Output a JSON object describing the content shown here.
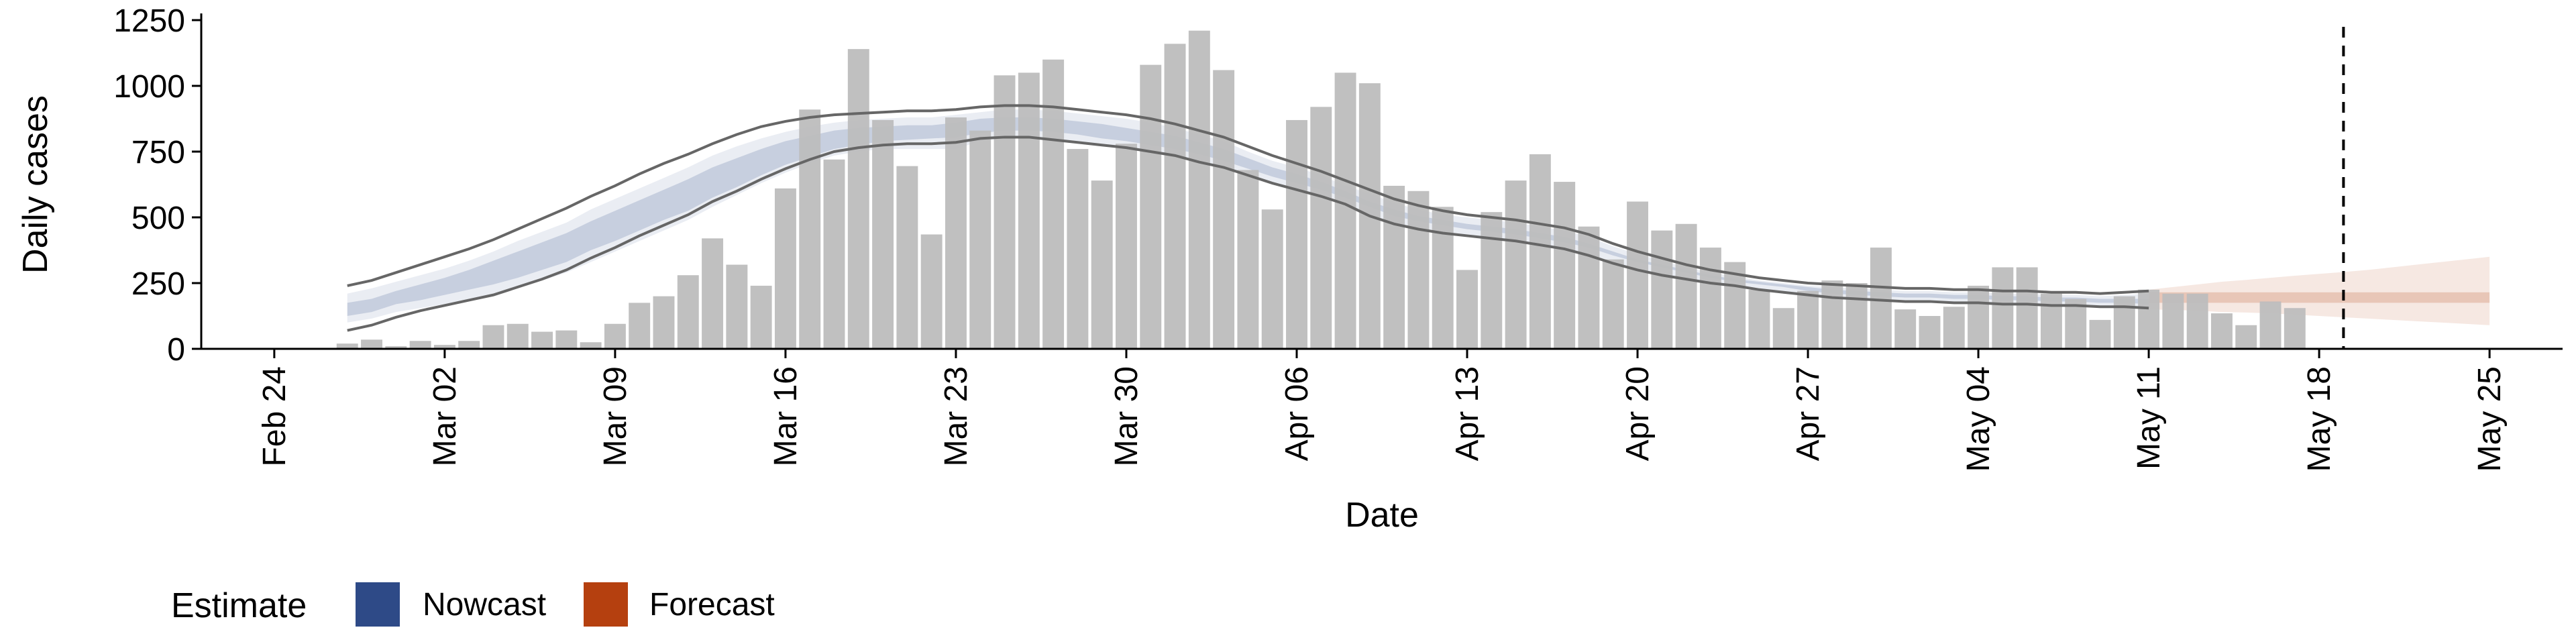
{
  "chart_data": {
    "type": "bar",
    "xlabel": "Date",
    "ylabel": "Daily cases",
    "ylim": [
      0,
      1250
    ],
    "yticks": [
      0,
      250,
      500,
      750,
      1000,
      1250
    ],
    "xlim": [
      "2020-02-21",
      "2020-05-28"
    ],
    "xticks": [
      {
        "date": "2020-02-24",
        "label": "Feb 24"
      },
      {
        "date": "2020-03-02",
        "label": "Mar 02"
      },
      {
        "date": "2020-03-09",
        "label": "Mar 09"
      },
      {
        "date": "2020-03-16",
        "label": "Mar 16"
      },
      {
        "date": "2020-03-23",
        "label": "Mar 23"
      },
      {
        "date": "2020-03-30",
        "label": "Mar 30"
      },
      {
        "date": "2020-04-06",
        "label": "Apr 06"
      },
      {
        "date": "2020-04-13",
        "label": "Apr 13"
      },
      {
        "date": "2020-04-20",
        "label": "Apr 20"
      },
      {
        "date": "2020-04-27",
        "label": "Apr 27"
      },
      {
        "date": "2020-05-04",
        "label": "May 04"
      },
      {
        "date": "2020-05-11",
        "label": "May 11"
      },
      {
        "date": "2020-05-18",
        "label": "May 18"
      },
      {
        "date": "2020-05-25",
        "label": "May 25"
      }
    ],
    "grid": false,
    "bars": {
      "start_date": "2020-02-27",
      "values": [
        20,
        35,
        10,
        30,
        15,
        30,
        90,
        95,
        65,
        70,
        25,
        95,
        175,
        200,
        280,
        420,
        320,
        240,
        610,
        910,
        720,
        1140,
        870,
        695,
        435,
        880,
        830,
        1040,
        1050,
        1100,
        760,
        640,
        780,
        1080,
        1160,
        1210,
        1060,
        680,
        530,
        870,
        920,
        1050,
        1010,
        620,
        600,
        540,
        300,
        520,
        640,
        740,
        635,
        465,
        340,
        560,
        450,
        475,
        385,
        330,
        225,
        155,
        220,
        260,
        250,
        385,
        150,
        125,
        160,
        240,
        310,
        310,
        210,
        190,
        110,
        200,
        225,
        210,
        210,
        135,
        90,
        180,
        155
      ]
    },
    "nowcast": {
      "start_date": "2020-02-27",
      "lower90": [
        100,
        115,
        140,
        155,
        170,
        185,
        210,
        235,
        260,
        290,
        330,
        370,
        410,
        450,
        490,
        540,
        585,
        630,
        670,
        705,
        735,
        750,
        760,
        760,
        760,
        760,
        790,
        800,
        800,
        790,
        780,
        770,
        760,
        745,
        735,
        710,
        690,
        660,
        630,
        605,
        580,
        550,
        510,
        480,
        460,
        445,
        430,
        420,
        410,
        395,
        380,
        360,
        330,
        300,
        285,
        270,
        250,
        240,
        225,
        210,
        200,
        190,
        190,
        185,
        180,
        180,
        175,
        175,
        170,
        170,
        165,
        165,
        160,
        160,
        155
      ],
      "upper90": [
        210,
        230,
        255,
        280,
        305,
        335,
        370,
        410,
        445,
        480,
        530,
        570,
        610,
        650,
        690,
        735,
        770,
        800,
        825,
        845,
        860,
        870,
        875,
        880,
        880,
        890,
        900,
        910,
        910,
        905,
        895,
        885,
        875,
        860,
        840,
        815,
        790,
        750,
        715,
        690,
        660,
        620,
        590,
        555,
        530,
        510,
        500,
        490,
        480,
        465,
        450,
        425,
        390,
        360,
        335,
        310,
        290,
        275,
        260,
        250,
        240,
        235,
        230,
        225,
        220,
        220,
        215,
        215,
        210,
        210,
        205,
        205,
        200,
        205,
        210
      ],
      "lower50": [
        125,
        140,
        170,
        185,
        205,
        225,
        245,
        270,
        300,
        330,
        375,
        410,
        450,
        490,
        525,
        575,
        615,
        660,
        700,
        730,
        760,
        775,
        790,
        795,
        800,
        805,
        820,
        830,
        830,
        825,
        815,
        800,
        790,
        775,
        760,
        740,
        715,
        685,
        655,
        630,
        605,
        575,
        540,
        505,
        485,
        470,
        455,
        445,
        435,
        420,
        405,
        385,
        355,
        330,
        310,
        290,
        270,
        255,
        245,
        235,
        220,
        210,
        205,
        200,
        195,
        195,
        190,
        190,
        185,
        185,
        180,
        180,
        175,
        175,
        170
      ],
      "upper50": [
        175,
        190,
        220,
        245,
        270,
        300,
        335,
        370,
        405,
        440,
        485,
        525,
        565,
        605,
        645,
        690,
        725,
        760,
        790,
        810,
        830,
        840,
        845,
        850,
        850,
        860,
        875,
        880,
        880,
        875,
        865,
        855,
        840,
        825,
        810,
        785,
        760,
        725,
        690,
        665,
        635,
        600,
        560,
        530,
        505,
        490,
        475,
        465,
        455,
        440,
        425,
        400,
        370,
        340,
        320,
        300,
        280,
        265,
        255,
        245,
        235,
        225,
        220,
        215,
        210,
        210,
        205,
        205,
        200,
        200,
        195,
        195,
        190,
        190,
        190
      ],
      "band_lower": [
        70,
        90,
        120,
        145,
        165,
        185,
        205,
        235,
        265,
        300,
        345,
        385,
        430,
        470,
        510,
        560,
        600,
        645,
        685,
        720,
        750,
        765,
        775,
        780,
        780,
        785,
        800,
        805,
        805,
        795,
        785,
        775,
        765,
        750,
        735,
        710,
        690,
        660,
        630,
        605,
        580,
        550,
        505,
        475,
        455,
        440,
        430,
        420,
        410,
        395,
        380,
        355,
        325,
        300,
        280,
        265,
        250,
        240,
        225,
        215,
        205,
        195,
        190,
        185,
        180,
        180,
        175,
        175,
        170,
        170,
        165,
        165,
        160,
        160,
        155
      ],
      "band_upper": [
        240,
        260,
        290,
        320,
        350,
        380,
        415,
        455,
        495,
        535,
        580,
        620,
        665,
        705,
        740,
        780,
        815,
        845,
        865,
        880,
        890,
        895,
        900,
        905,
        905,
        910,
        920,
        925,
        925,
        920,
        910,
        900,
        890,
        875,
        855,
        830,
        805,
        770,
        735,
        705,
        675,
        640,
        605,
        570,
        545,
        525,
        510,
        500,
        490,
        475,
        460,
        435,
        400,
        370,
        345,
        320,
        300,
        285,
        270,
        260,
        250,
        245,
        240,
        235,
        230,
        230,
        225,
        225,
        220,
        220,
        215,
        215,
        210,
        215,
        220
      ]
    },
    "forecast": {
      "start_date": "2020-05-11",
      "lower90": [
        150,
        148,
        145,
        140,
        138,
        135,
        130,
        125,
        120,
        115,
        110,
        105,
        100,
        95,
        90
      ],
      "upper90": [
        225,
        235,
        245,
        255,
        262,
        270,
        278,
        285,
        292,
        300,
        310,
        320,
        330,
        340,
        350
      ],
      "lower50": [
        175,
        175,
        175,
        175,
        175,
        175,
        175,
        175,
        175,
        175,
        175,
        175,
        175,
        175,
        175
      ],
      "upper50": [
        215,
        215,
        215,
        215,
        215,
        215,
        215,
        215,
        215,
        215,
        215,
        215,
        215,
        215,
        215
      ]
    },
    "vline_date": "2020-05-19",
    "legend": {
      "position": "bottom-left",
      "title": "Estimate",
      "items": [
        {
          "label": "Nowcast",
          "color": "#2e4a87"
        },
        {
          "label": "Forecast",
          "color": "#b5400f"
        }
      ]
    },
    "colors": {
      "bar": "#bdbdbd",
      "nowcast_band": "#2e4a87",
      "forecast_band": "#b5400f",
      "outline": "#666666",
      "axis": "#000000"
    }
  }
}
